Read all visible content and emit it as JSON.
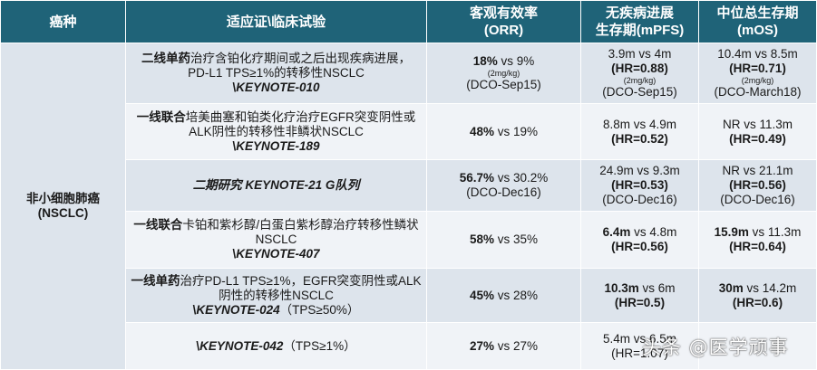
{
  "header": {
    "cancer": "癌种",
    "indication": "适应证\\临床试验",
    "orr_line1": "客观有效率",
    "orr_line2": "(ORR)",
    "pfs_line1": "无疾病进展",
    "pfs_line2": "生存期(mPFS)",
    "os_line1": "中位总生存期",
    "os_line2": "(mOS)"
  },
  "cancer": {
    "line1": "非小细胞肺癌",
    "line2": "(NSCLC)"
  },
  "rows": [
    {
      "indic_bold": "二线单药",
      "indic_text1": "治疗含铂化疗期间或之后出现疾病进展，",
      "indic_text2": "PD-L1 TPS≥1%的转移性NSCLC",
      "trial_prefix": "\\",
      "trial": "KEYNOTE-010",
      "orr_bold": "18%",
      "orr_rest": " vs 9%",
      "orr_dose": "(2mg/kg)",
      "orr_note": "(DCO-Sep15)",
      "pfs_top": "3.9m vs 4m",
      "pfs_hr": "(HR=0.88)",
      "pfs_dose": "(2mg/kg)",
      "pfs_note": "(DCO-Sep15)",
      "os_top": "10.4m vs 8.5m",
      "os_hr": "(HR=0.71)",
      "os_dose": "(2mg/kg)",
      "os_note": "(DCO-March18)"
    },
    {
      "indic_bold": "一线联合",
      "indic_text1": "培美曲塞和铂类化疗治疗EGFR突变阴性或",
      "indic_text2": "ALK阴性的转移性非鳞状NSCLC",
      "trial_prefix": "\\",
      "trial": "KEYNOTE-189",
      "orr_bold": "48%",
      "orr_rest": " vs 19%",
      "pfs_top": "8.8m vs 4.9m",
      "pfs_hr": "(HR=0.52)",
      "os_top": "NR vs 11.3m",
      "os_hr": "(HR=0.49)"
    },
    {
      "trial_label": "二期研究 KEYNOTE-21 G队列",
      "orr_bold": "56.7%",
      "orr_rest": " vs 30.2%",
      "orr_note": "(DCO-Dec16)",
      "pfs_top": "24.9m vs 9.3m",
      "pfs_hr": "(HR=0.53)",
      "pfs_note": "(DCO-Dec16)",
      "os_top": "NR vs 21.1m",
      "os_hr": "(HR=0.56)",
      "os_note": "(DCO-Dec16)"
    },
    {
      "indic_bold": "一线联合",
      "indic_text1": "卡铂和紫杉醇/白蛋白紫杉醇治疗转移性鳞状",
      "indic_text2": "NSCLC",
      "trial_prefix": "\\",
      "trial": "KEYNOTE-407",
      "orr_bold": "58%",
      "orr_rest": " vs 35%",
      "pfs_bold": "6.4m",
      "pfs_rest": " vs 4.8m",
      "pfs_hr": "(HR=0.56)",
      "os_bold": "15.9m",
      "os_rest": " vs 11.3m",
      "os_hr": "(HR=0.64)"
    },
    {
      "indic_bold": "一线单药",
      "indic_text1": "治疗PD-L1 TPS≥1%，EGFR突变阴性或ALK",
      "indic_text2": "阴性的转移性NSCLC",
      "trial_prefix": "\\",
      "trial": "KEYNOTE-024",
      "trial_suffix": "（TPS≥50%）",
      "orr_bold": "45%",
      "orr_rest": " vs 28%",
      "pfs_bold": "10.3m",
      "pfs_rest": " vs 6m",
      "pfs_hr": "(HR=0.5)",
      "os_bold": "30m",
      "os_rest": " vs 14.2m",
      "os_hr": "(HR=0.6)"
    },
    {
      "trial_prefix": "\\",
      "trial": "KEYNOTE-042",
      "trial_suffix": "（TPS≥1%）",
      "orr_bold": "27%",
      "orr_rest": " vs 27%",
      "pfs_top": "5.4m vs 6.5m",
      "pfs_hr": "(HR=1.07)"
    }
  ],
  "watermark": "头条 @医学顽事"
}
